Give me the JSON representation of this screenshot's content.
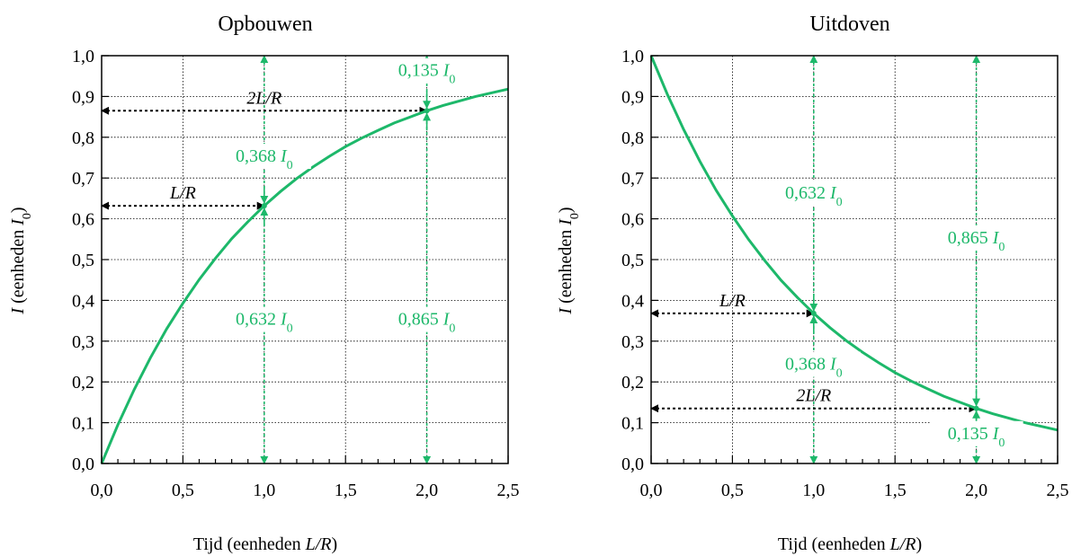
{
  "colors": {
    "curve": "#1db86a",
    "annotation": "#1db86a",
    "arrow": "#000000",
    "grid": "#000000",
    "frame": "#000000",
    "text": "#000000"
  },
  "chart_data": [
    {
      "type": "line",
      "title": "Opbouwen",
      "xlabel": "Tijd (eenheden L/R)",
      "xlabel_parts": {
        "before": "Tijd (eenheden ",
        "italic": "L/R",
        "after": ")"
      },
      "ylabel": "I (eenheden I0)",
      "ylabel_parts": {
        "italic_var": "I",
        "middle": " (eenheden ",
        "sub_var": "I",
        "sub": "0",
        "after": ")"
      },
      "xlim": [
        0,
        2.5
      ],
      "ylim": [
        0,
        1.0
      ],
      "grid": true,
      "x_ticks": [
        "0,0",
        "0,5",
        "1,0",
        "1,5",
        "2,0",
        "2,5"
      ],
      "y_ticks": [
        "0,0",
        "0,1",
        "0,2",
        "0,3",
        "0,4",
        "0,5",
        "0,6",
        "0,7",
        "0,8",
        "0,9",
        "1,0"
      ],
      "series": [
        {
          "x": [
            0,
            0.1,
            0.2,
            0.3,
            0.4,
            0.5,
            0.6,
            0.7,
            0.8,
            0.9,
            1.0,
            1.1,
            1.2,
            1.3,
            1.4,
            1.5,
            1.6,
            1.7,
            1.8,
            1.9,
            2.0,
            2.1,
            2.2,
            2.3,
            2.4,
            2.5
          ],
          "values": [
            0,
            0.095,
            0.181,
            0.259,
            0.33,
            0.393,
            0.451,
            0.503,
            0.551,
            0.593,
            0.632,
            0.667,
            0.699,
            0.727,
            0.753,
            0.777,
            0.798,
            0.817,
            0.835,
            0.85,
            0.865,
            0.878,
            0.889,
            0.9,
            0.909,
            0.918
          ]
        }
      ],
      "markers": [
        {
          "x": 1.0,
          "y": 0.632
        },
        {
          "x": 2.0,
          "y": 0.865
        }
      ],
      "vertical_guides": [
        {
          "x": 1.0,
          "from": 0,
          "to": 1.0
        },
        {
          "x": 2.0,
          "from": 0,
          "to": 1.0
        }
      ],
      "horizontal_arrows": [
        {
          "y": 0.632,
          "x_from": 0,
          "x_to": 1.0,
          "label": "L/R"
        },
        {
          "y": 0.865,
          "x_from": 0,
          "x_to": 2.0,
          "label": "2L/R"
        }
      ],
      "annotations": [
        {
          "x": 1.0,
          "y": 0.34,
          "value": "0,632",
          "var": "I",
          "sub": "0"
        },
        {
          "x": 2.0,
          "y": 0.34,
          "value": "0,865",
          "var": "I",
          "sub": "0"
        },
        {
          "x": 1.0,
          "y": 0.74,
          "value": "0,368",
          "var": "I",
          "sub": "0"
        },
        {
          "x": 2.0,
          "y": 0.95,
          "value": "0,135",
          "var": "I",
          "sub": "0"
        }
      ]
    },
    {
      "type": "line",
      "title": "Uitdoven",
      "xlabel": "Tijd (eenheden L/R)",
      "xlabel_parts": {
        "before": "Tijd (eenheden ",
        "italic": "L/R",
        "after": ")"
      },
      "ylabel": "I (eenheden I0)",
      "ylabel_parts": {
        "italic_var": "I",
        "middle": " (eenheden ",
        "sub_var": "I",
        "sub": "0",
        "after": ")"
      },
      "xlim": [
        0,
        2.5
      ],
      "ylim": [
        0,
        1.0
      ],
      "grid": true,
      "x_ticks": [
        "0,0",
        "0,5",
        "1,0",
        "1,5",
        "2,0",
        "2,5"
      ],
      "y_ticks": [
        "0,0",
        "0,1",
        "0,2",
        "0,3",
        "0,4",
        "0,5",
        "0,6",
        "0,7",
        "0,8",
        "0,9",
        "1,0"
      ],
      "series": [
        {
          "x": [
            0,
            0.1,
            0.2,
            0.3,
            0.4,
            0.5,
            0.6,
            0.7,
            0.8,
            0.9,
            1.0,
            1.1,
            1.2,
            1.3,
            1.4,
            1.5,
            1.6,
            1.7,
            1.8,
            1.9,
            2.0,
            2.1,
            2.2,
            2.3,
            2.4,
            2.5
          ],
          "values": [
            1.0,
            0.905,
            0.819,
            0.741,
            0.67,
            0.607,
            0.549,
            0.497,
            0.449,
            0.407,
            0.368,
            0.333,
            0.301,
            0.273,
            0.247,
            0.223,
            0.202,
            0.183,
            0.165,
            0.15,
            0.135,
            0.122,
            0.111,
            0.1,
            0.091,
            0.082
          ]
        }
      ],
      "markers": [
        {
          "x": 1.0,
          "y": 0.368
        },
        {
          "x": 2.0,
          "y": 0.135
        }
      ],
      "vertical_guides": [
        {
          "x": 1.0,
          "from": 0,
          "to": 1.0
        },
        {
          "x": 2.0,
          "from": 0,
          "to": 1.0
        }
      ],
      "horizontal_arrows": [
        {
          "y": 0.368,
          "x_from": 0,
          "x_to": 1.0,
          "label": "L/R"
        },
        {
          "y": 0.135,
          "x_from": 0,
          "x_to": 2.0,
          "label": "2L/R"
        }
      ],
      "annotations": [
        {
          "x": 1.0,
          "y": 0.65,
          "value": "0,632",
          "var": "I",
          "sub": "0"
        },
        {
          "x": 2.0,
          "y": 0.54,
          "value": "0,865",
          "var": "I",
          "sub": "0"
        },
        {
          "x": 1.0,
          "y": 0.23,
          "value": "0,368",
          "var": "I",
          "sub": "0"
        },
        {
          "x": 2.0,
          "y": 0.06,
          "value": "0,135",
          "var": "I",
          "sub": "0"
        }
      ]
    }
  ]
}
